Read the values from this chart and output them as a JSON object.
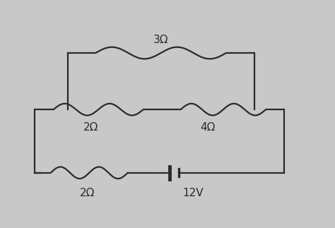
{
  "bg_color": "#c8c8c8",
  "line_color": "#2a2a2a",
  "line_width": 1.6,
  "labels": {
    "R1": "3Ω",
    "R2": "2Ω",
    "R3": "4Ω",
    "R4": "2Ω",
    "V": "12V"
  },
  "font_size": 11
}
